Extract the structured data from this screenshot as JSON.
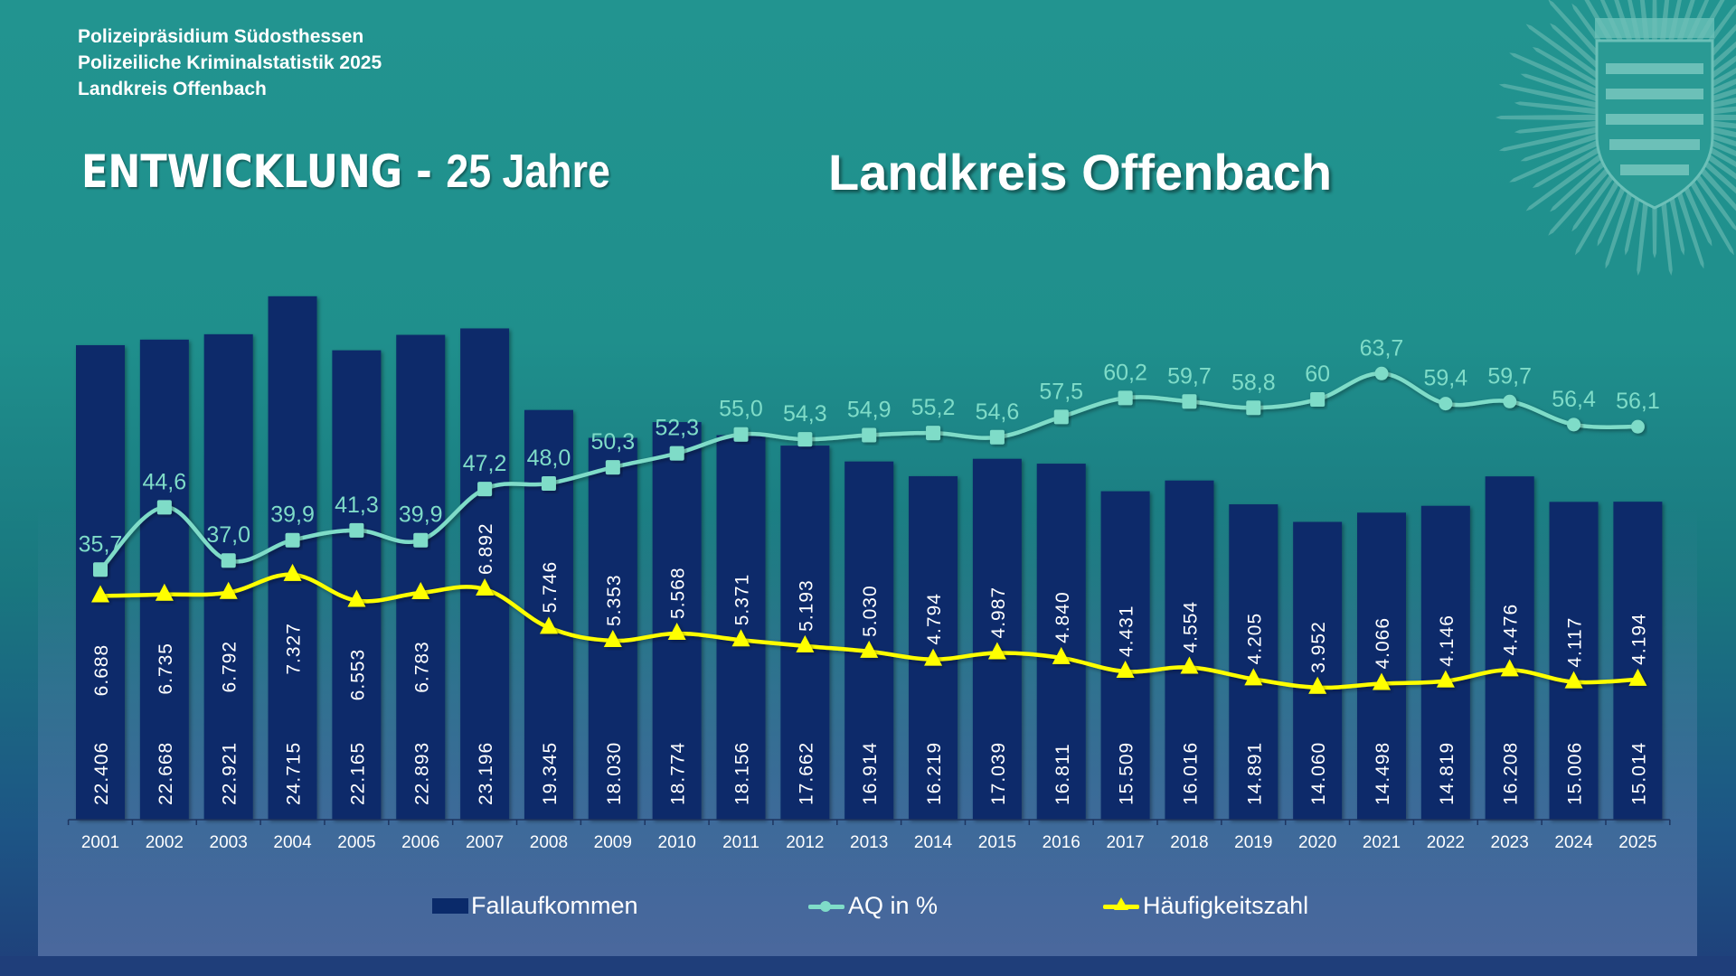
{
  "header": {
    "lines": [
      "Polizeipräsidium Südosthessen",
      "Polizeiliche Kriminalstatistik 2025",
      "Landkreis Offenbach"
    ],
    "title_left": "ENTWICKLUNG -",
    "title_left_big": "25 Jahre",
    "title_right": "Landkreis Offenbach"
  },
  "emblem": {
    "icon": "police-star-emblem-icon"
  },
  "colors": {
    "bars": "#0a2a6a",
    "aq": "#7fdcc8",
    "hz": "#ffff00",
    "bar_label": "#ffffff"
  },
  "chart_data": {
    "type": "bar",
    "title": "ENTWICKLUNG - 25 Jahre Landkreis Offenbach",
    "xlabel": "",
    "ylabel": "",
    "categories": [
      "2001",
      "2002",
      "2003",
      "2004",
      "2005",
      "2006",
      "2007",
      "2008",
      "2009",
      "2010",
      "2011",
      "2012",
      "2013",
      "2014",
      "2015",
      "2016",
      "2017",
      "2018",
      "2019",
      "2020",
      "2021",
      "2022",
      "2023",
      "2024",
      "2025"
    ],
    "series": [
      {
        "name": "Fallaufkommen",
        "type": "bar",
        "axis": "primary",
        "values": [
          22406,
          22668,
          22921,
          24715,
          22165,
          22893,
          23196,
          19345,
          18030,
          18774,
          18156,
          17662,
          16914,
          16219,
          17039,
          16811,
          15509,
          16016,
          14891,
          14060,
          14498,
          14819,
          16208,
          15006,
          15014
        ],
        "labels": [
          "22.406",
          "22.668",
          "22.921",
          "24.715",
          "22.165",
          "22.893",
          "23.196",
          "19.345",
          "18.030",
          "18.774",
          "18.156",
          "17.662",
          "16.914",
          "16.219",
          "17.039",
          "16.811",
          "15.509",
          "16.016",
          "14.891",
          "14.060",
          "14.498",
          "14.819",
          "16.208",
          "15.006",
          "15.014"
        ]
      },
      {
        "name": "AQ in %",
        "type": "line",
        "axis": "secondary",
        "values": [
          35.7,
          44.6,
          37.0,
          39.9,
          41.3,
          39.9,
          47.2,
          48.0,
          50.3,
          52.3,
          55.0,
          54.3,
          54.9,
          55.2,
          54.6,
          57.5,
          60.2,
          59.7,
          58.8,
          60,
          63.7,
          59.4,
          59.7,
          56.4,
          56.1
        ],
        "labels": [
          "35,7",
          "44,6",
          "37,0",
          "39,9",
          "41,3",
          "39,9",
          "47,2",
          "48,0",
          "50,3",
          "52,3",
          "55,0",
          "54,3",
          "54,9",
          "55,2",
          "54,6",
          "57,5",
          "60,2",
          "59,7",
          "58,8",
          "60",
          "63,7",
          "59,4",
          "59,7",
          "56,4",
          "56,1"
        ],
        "markers": [
          "square",
          "square",
          "square",
          "square",
          "square",
          "square",
          "square",
          "square",
          "square",
          "square",
          "square",
          "square",
          "square",
          "square",
          "square",
          "square",
          "square",
          "square",
          "square",
          "square",
          "circle",
          "circle",
          "circle",
          "circle",
          "circle"
        ]
      },
      {
        "name": "Häufigkeitszahl",
        "type": "line",
        "axis": "tertiary",
        "marker": "triangle",
        "values": [
          6688,
          6735,
          6792,
          7327,
          6553,
          6783,
          6892,
          5746,
          5353,
          5568,
          5371,
          5193,
          5030,
          4794,
          4987,
          4840,
          4431,
          4554,
          4205,
          3952,
          4066,
          4146,
          4476,
          4117,
          4194
        ],
        "labels": [
          "6.688",
          "6.735",
          "6.792",
          "7.327",
          "6.553",
          "6.783",
          "6.892",
          "5.746",
          "5.353",
          "5.568",
          "5.371",
          "5.193",
          "5.030",
          "4.794",
          "4.987",
          "4.840",
          "4.431",
          "4.554",
          "4.205",
          "3.952",
          "4.066",
          "4.146",
          "4.476",
          "4.117",
          "4.194"
        ]
      }
    ],
    "ylim_bars": [
      0,
      30000
    ],
    "ylim_aq": [
      0,
      90.7
    ],
    "ylim_hz": [
      0,
      19000
    ],
    "grid": false,
    "axes_visible": false,
    "legend": {
      "position": "bottom",
      "entries": [
        "Fallaufkommen",
        "AQ in %",
        "Häufigkeitszahl"
      ]
    }
  }
}
